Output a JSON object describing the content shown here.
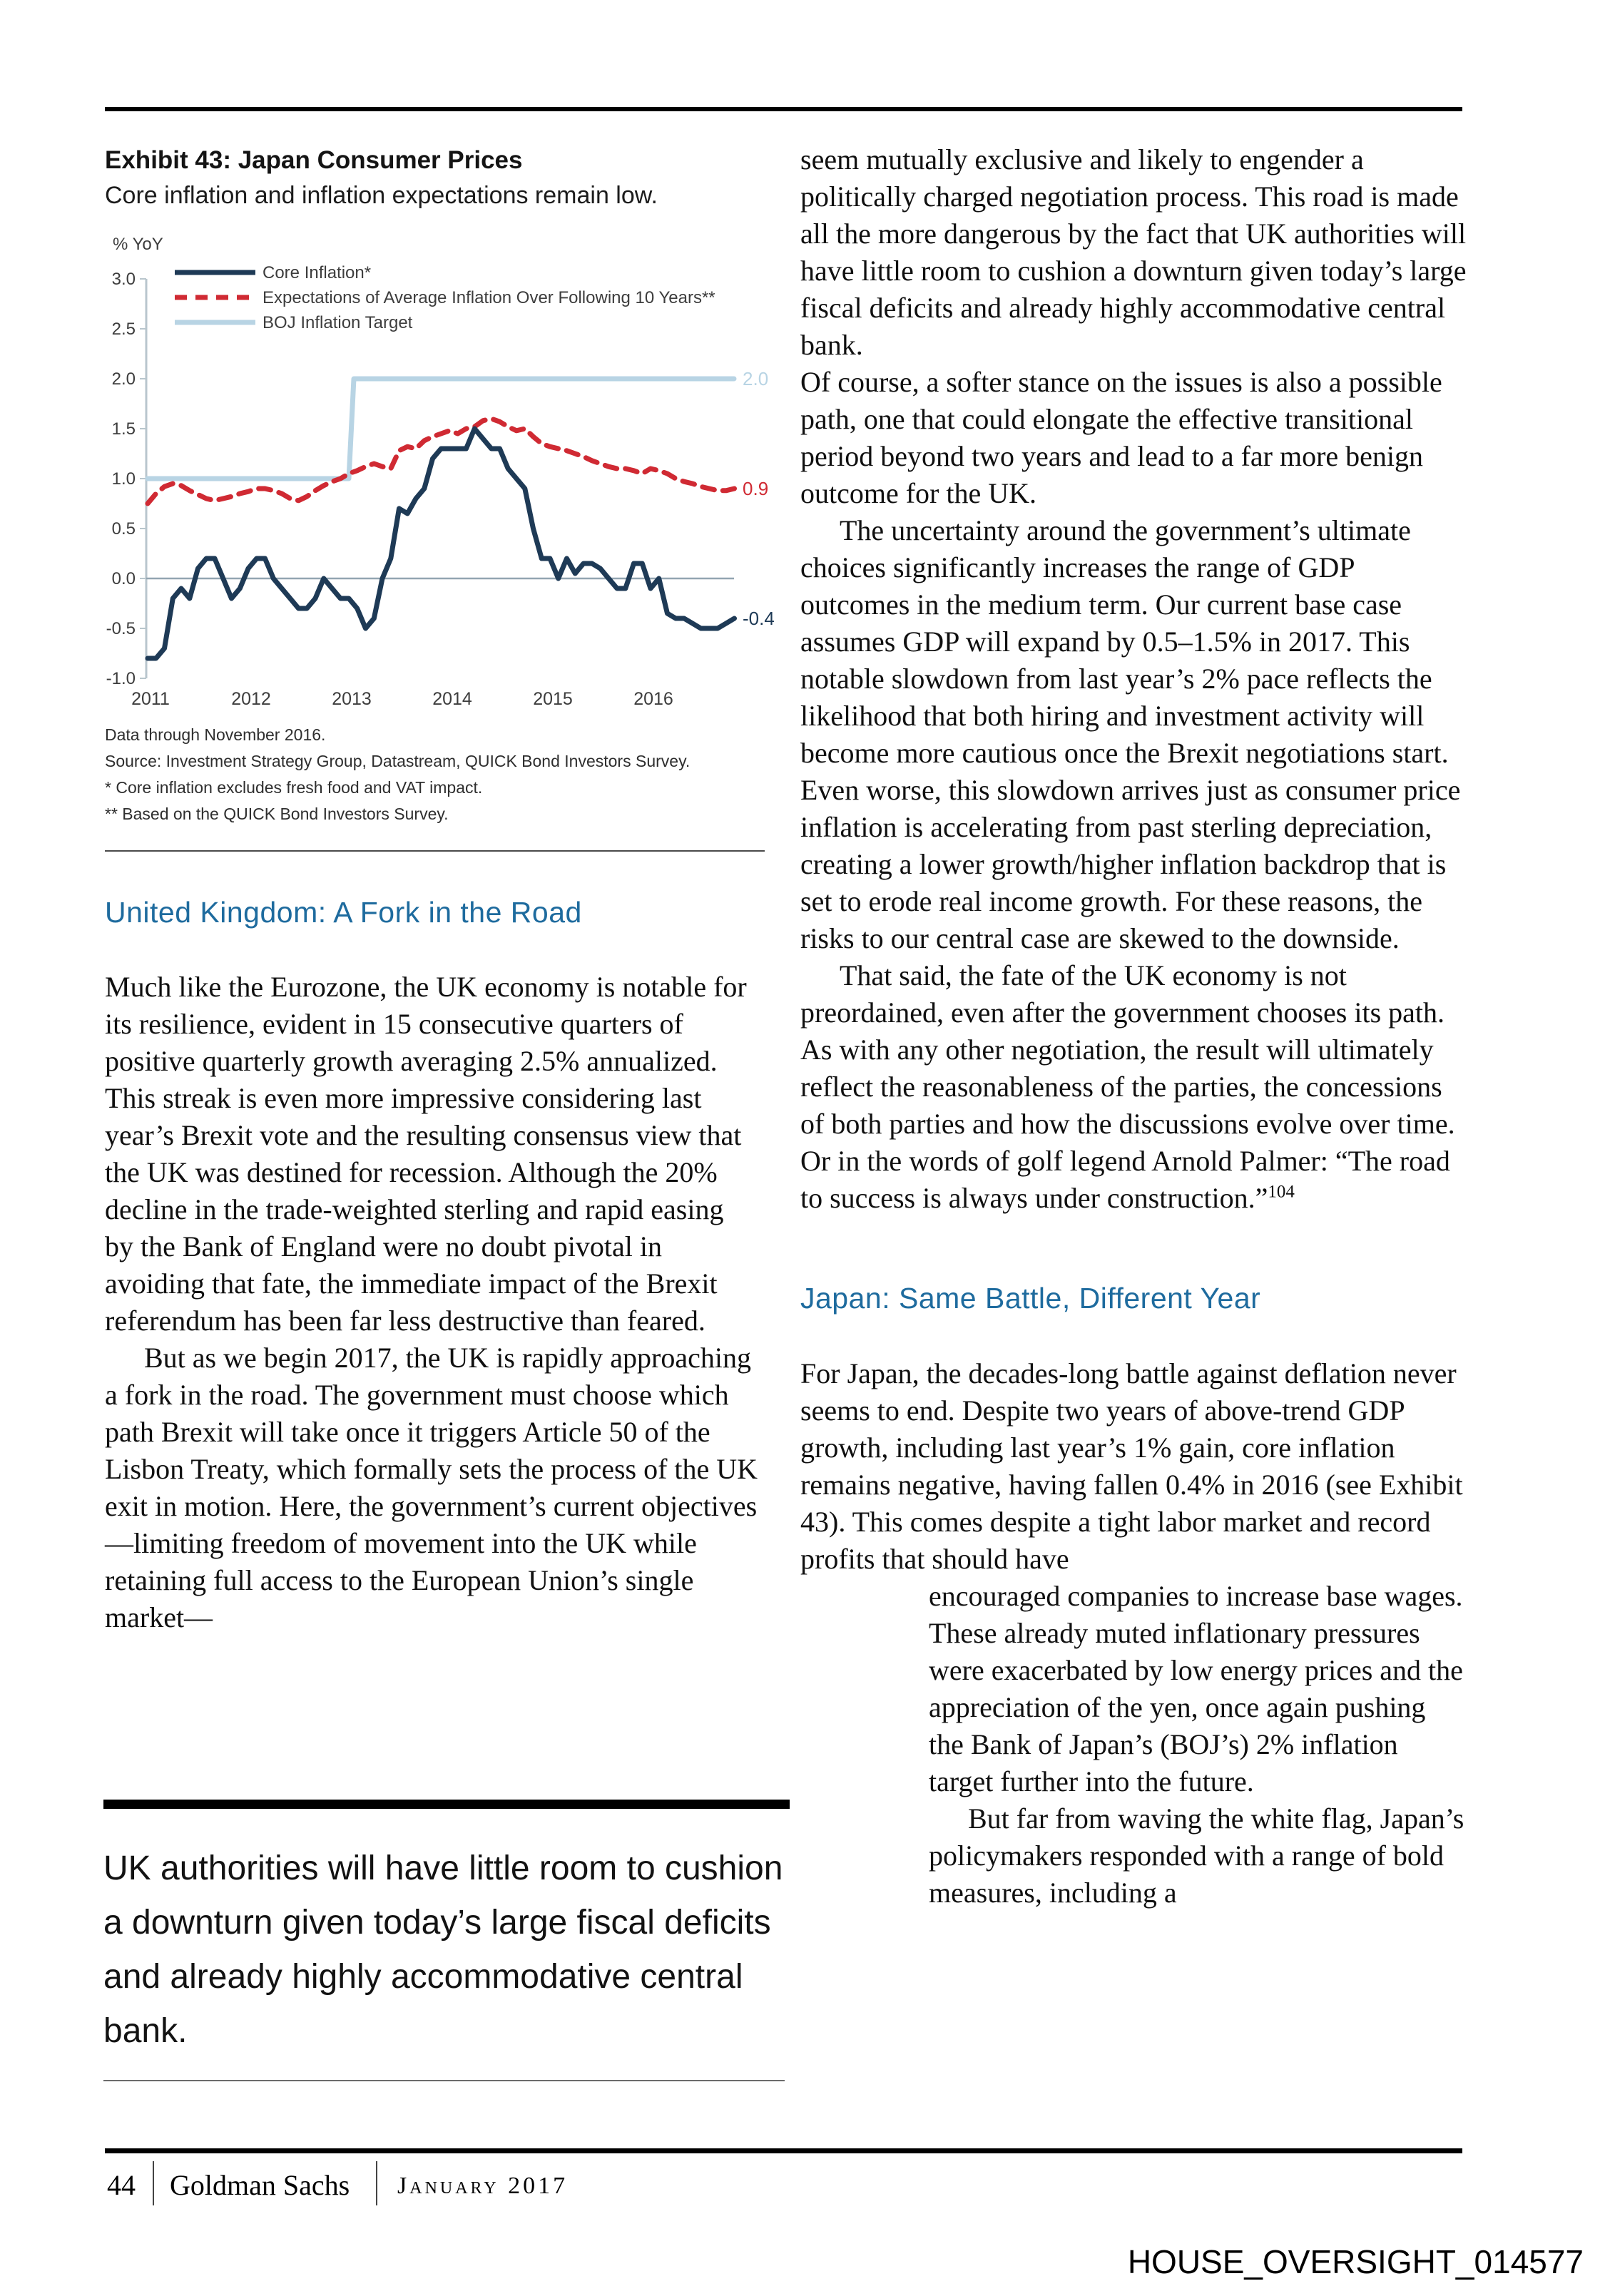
{
  "exhibit": {
    "title": "Exhibit 43: Japan Consumer Prices",
    "subtitle": "Core inflation and inflation expectations remain low.",
    "notes": [
      "Data through November 2016.",
      "Source: Investment Strategy Group, Datastream, QUICK Bond Investors Survey.",
      "* Core inflation excludes fresh food and VAT impact.",
      "** Based on the QUICK Bond Investors Survey."
    ]
  },
  "chart_data": {
    "type": "line",
    "title": "Exhibit 43: Japan Consumer Prices",
    "subtitle": "Core inflation and inflation expectations remain low.",
    "ylabel": "% YoY",
    "ylim": [
      -1.0,
      3.0
    ],
    "ytick_step": 0.5,
    "y_tick_labels": [
      "3.0",
      "2.5",
      "2.0",
      "1.5",
      "1.0",
      "0.5",
      "0.0",
      "-0.5",
      "-1.0"
    ],
    "x_ticks": [
      2011,
      2012,
      2013,
      2014,
      2015,
      2016
    ],
    "xlim": [
      2011.0,
      2016.83
    ],
    "grid": "zero-line-only",
    "legend_position": "top-left-inside",
    "series": [
      {
        "name": "Core Inflation*",
        "color": "#1e3a56",
        "style": "solid",
        "end_label": "-0.4",
        "x_start": 2011.0,
        "x_step_months": 1,
        "values": [
          -0.8,
          -0.8,
          -0.7,
          -0.2,
          -0.1,
          -0.2,
          0.1,
          0.2,
          0.2,
          0.0,
          -0.2,
          -0.1,
          0.1,
          0.2,
          0.2,
          0.0,
          -0.1,
          -0.2,
          -0.3,
          -0.3,
          -0.2,
          0.0,
          -0.1,
          -0.2,
          -0.2,
          -0.3,
          -0.5,
          -0.4,
          0.0,
          0.2,
          0.7,
          0.65,
          0.8,
          0.9,
          1.2,
          1.3,
          1.3,
          1.3,
          1.3,
          1.5,
          1.4,
          1.3,
          1.3,
          1.1,
          1.0,
          0.9,
          0.5,
          0.2,
          0.2,
          0.0,
          0.2,
          0.05,
          0.15,
          0.15,
          0.1,
          0.0,
          -0.1,
          -0.1,
          0.15,
          0.15,
          -0.1,
          0.0,
          -0.35,
          -0.4,
          -0.4,
          -0.45,
          -0.5,
          -0.5,
          -0.5,
          -0.45,
          -0.4
        ]
      },
      {
        "name": "Expectations of Average Inflation Over Following 10 Years**",
        "color": "#d02a33",
        "style": "dashed",
        "end_label": "0.9",
        "x_start": 2011.0,
        "x_step_months": 1,
        "values": [
          0.75,
          0.85,
          0.92,
          0.95,
          0.93,
          0.88,
          0.84,
          0.8,
          0.78,
          0.8,
          0.82,
          0.85,
          0.87,
          0.9,
          0.9,
          0.88,
          0.85,
          0.8,
          0.78,
          0.82,
          0.88,
          0.93,
          0.97,
          1.0,
          1.05,
          1.08,
          1.12,
          1.15,
          1.12,
          1.1,
          1.28,
          1.32,
          1.3,
          1.38,
          1.42,
          1.45,
          1.48,
          1.45,
          1.5,
          1.52,
          1.58,
          1.6,
          1.57,
          1.52,
          1.48,
          1.5,
          1.42,
          1.35,
          1.32,
          1.3,
          1.28,
          1.25,
          1.22,
          1.18,
          1.15,
          1.12,
          1.1,
          1.1,
          1.08,
          1.05,
          1.1,
          1.08,
          1.05,
          1.0,
          0.97,
          0.95,
          0.92,
          0.9,
          0.88,
          0.88,
          0.9
        ]
      },
      {
        "name": "BOJ Inflation Target",
        "color": "#b8d4e4",
        "style": "solid",
        "end_label": "2.0",
        "x": [
          2011.0,
          2013.0,
          2013.05,
          2016.83
        ],
        "values": [
          1.0,
          1.0,
          2.0,
          2.0
        ]
      }
    ]
  },
  "left_column": {
    "uk_heading": "United Kingdom: A Fork in the Road",
    "p1": "Much like the Eurozone, the UK economy is notable for its resilience, evident in 15 consecutive quarters of positive quarterly growth averaging 2.5% annualized. This streak is even more impressive considering last year’s Brexit vote and the resulting consensus view that the UK was destined for recession. Although the 20% decline in the trade-weighted sterling and rapid easing by the Bank of England were no doubt pivotal in avoiding that fate, the immediate impact of the Brexit referendum has been far less destructive than feared.",
    "p2": "But as we begin 2017, the UK is rapidly approaching a fork in the road. The government must choose which path Brexit will take once it triggers Article 50 of the Lisbon Treaty, which formally sets the process of the UK exit in motion. Here, the government’s current objectives—limiting freedom of movement into the UK while retaining full access to the European Union’s single market—"
  },
  "pull_quote": {
    "text": "UK authorities will have little room to cushion a downturn given today’s large fiscal deficits and already highly accommodative central bank."
  },
  "right_column": {
    "p1": "seem mutually exclusive and likely to engender a politically charged negotiation process. This road is made all the more dangerous by the fact that UK authorities will have little room to cushion a downturn given today’s large fiscal deficits and already highly accommodative central bank.",
    "p2": "Of course, a softer stance on the issues is also a possible path, one that could elongate the effective transitional period beyond two years and lead to a far more benign outcome for the UK.",
    "p3": "The uncertainty around the government’s ultimate choices significantly increases the range of GDP outcomes in the medium term. Our current base case assumes GDP will expand by 0.5–1.5% in 2017. This notable slowdown from last year’s 2% pace reflects the likelihood that both hiring and investment activity will become more cautious once the Brexit negotiations start. Even worse, this slowdown arrives just as consumer price inflation is accelerating from past sterling depreciation, creating a lower growth/higher inflation backdrop that is set to erode real income growth. For these reasons, the risks to our central case are skewed to the downside.",
    "p4": "That said, the fate of the UK economy is not preordained, even after the government chooses its path. As with any other negotiation, the result will ultimately reflect the reasonableness of the parties, the concessions of both parties and how the discussions evolve over time. Or in the words of golf legend Arnold Palmer: “The road to success is always under construction.”",
    "p4_footnote": "104",
    "japan_heading": "Japan: Same Battle, Different Year",
    "jp1": "For Japan, the decades-long battle against deflation never seems to end. Despite two years of above-trend GDP growth, including last year’s 1% gain, core inflation remains negative, having fallen 0.4% in 2016 (see Exhibit 43). This comes despite a tight labor market and record profits that should have",
    "jp1b": "encouraged companies to increase base wages. These already muted inflationary pressures were exacerbated by low energy prices and the appreciation of the yen, once again pushing the Bank of Japan’s (BOJ’s) 2% inflation target further into the future.",
    "jp2": "But far from waving the white flag, Japan’s policymakers responded with a range of bold measures, including a"
  },
  "footer": {
    "page_number": "44",
    "brand": "Goldman Sachs",
    "date": "January 2017"
  },
  "watermark": "HOUSE_OVERSIGHT_014577",
  "colors": {
    "heading_blue": "#1e6b9e",
    "core_line": "#1e3a56",
    "expectations_line": "#d02a33",
    "boj_target_line": "#b8d4e4"
  }
}
